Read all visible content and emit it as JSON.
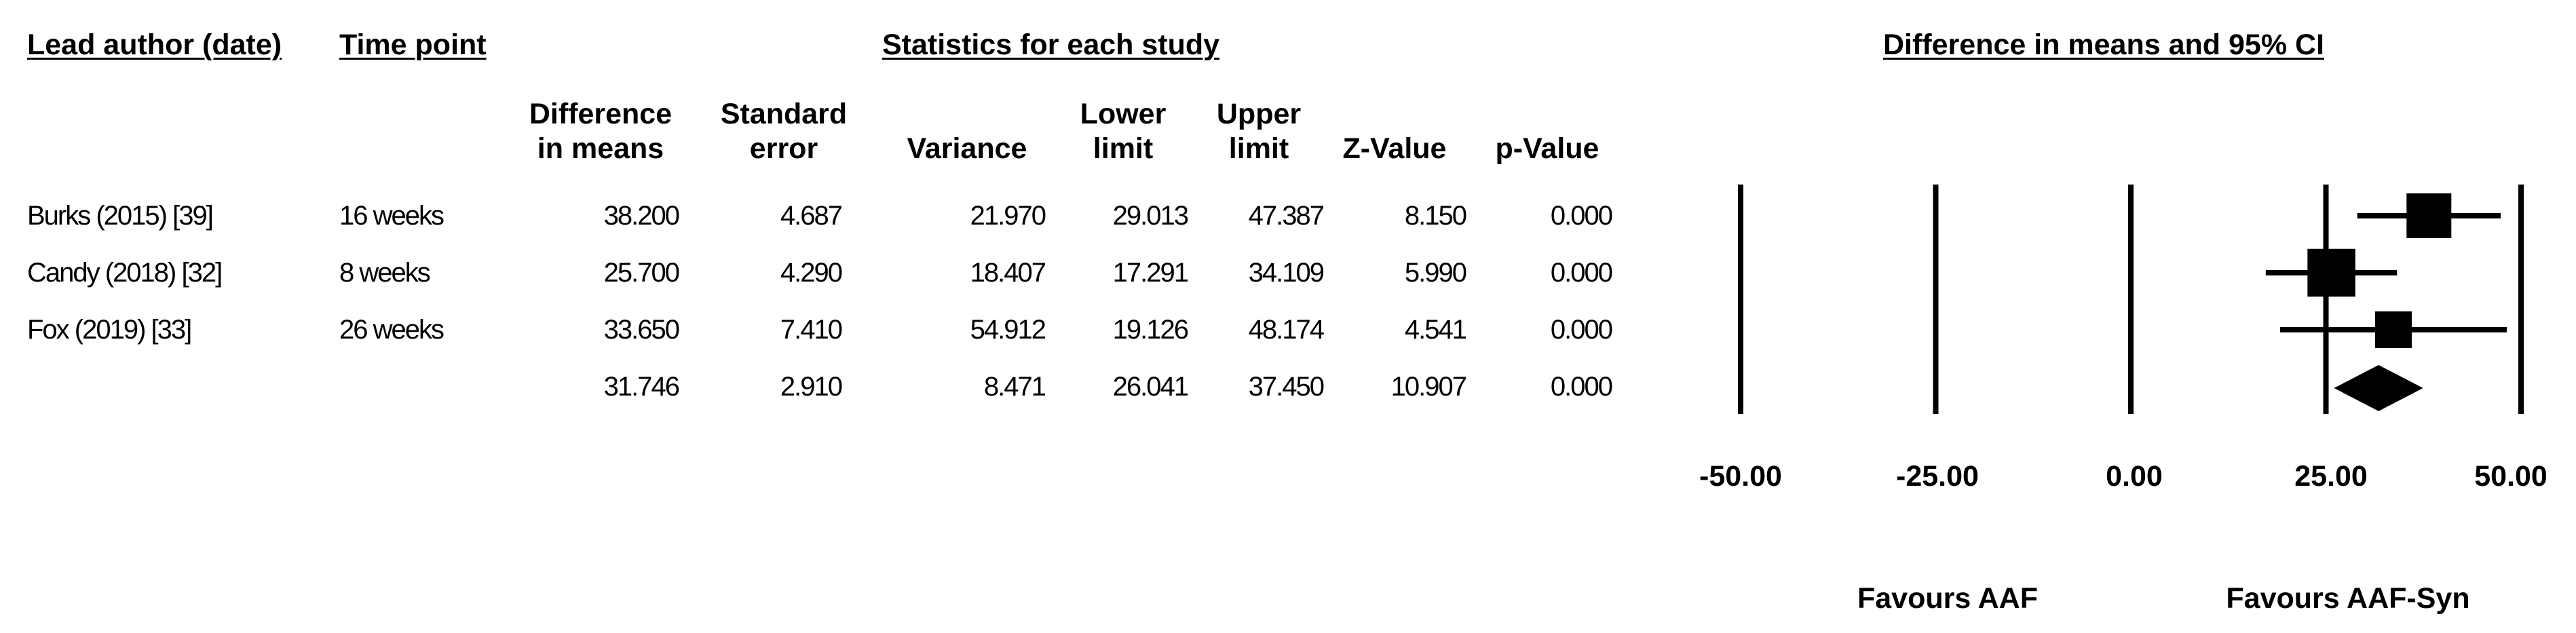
{
  "headers": {
    "author": "Lead author (date)",
    "time": "Time point",
    "stats": "Statistics for each study",
    "forest": "Difference in means and 95% CI"
  },
  "columns": [
    {
      "key": "diff",
      "line1": "Difference",
      "line2": "in means"
    },
    {
      "key": "se",
      "line1": "Standard",
      "line2": "error"
    },
    {
      "key": "var",
      "line1": "",
      "line2": "Variance"
    },
    {
      "key": "lower",
      "line1": "Lower",
      "line2": "limit"
    },
    {
      "key": "upper",
      "line1": "Upper",
      "line2": "limit"
    },
    {
      "key": "z",
      "line1": "",
      "line2": "Z-Value"
    },
    {
      "key": "p",
      "line1": "",
      "line2": "p-Value"
    }
  ],
  "rows": [
    {
      "author": "Burks (2015) [39]",
      "time": "16 weeks",
      "diff": "38.200",
      "se": "4.687",
      "var": "21.970",
      "lower": "29.013",
      "upper": "47.387",
      "z": "8.150",
      "p": "0.000"
    },
    {
      "author": "Candy (2018) [32]",
      "time": "8 weeks",
      "diff": "25.700",
      "se": "4.290",
      "var": "18.407",
      "lower": "17.291",
      "upper": "34.109",
      "z": "5.990",
      "p": "0.000"
    },
    {
      "author": "Fox (2019) [33]",
      "time": "26 weeks",
      "diff": "33.650",
      "se": "7.410",
      "var": "54.912",
      "lower": "19.126",
      "upper": "48.174",
      "z": "4.541",
      "p": "0.000"
    },
    {
      "author": "",
      "time": "",
      "diff": "31.746",
      "se": "2.910",
      "var": "8.471",
      "lower": "26.041",
      "upper": "37.450",
      "z": "10.907",
      "p": "0.000"
    }
  ],
  "axis": {
    "ticks": [
      "-50.00",
      "-25.00",
      "0.00",
      "25.00",
      "50.00"
    ],
    "favour_left": "Favours AAF",
    "favour_right": "Favours AAF-Syn"
  },
  "chart_data": {
    "type": "forest",
    "xlim": [
      -50,
      50
    ],
    "xticks": [
      -50,
      -25,
      0,
      25,
      50
    ],
    "studies": [
      {
        "label": "Burks (2015) [39]",
        "estimate": 38.2,
        "lower": 29.013,
        "upper": 47.387,
        "marker": "square",
        "weight": 1.0
      },
      {
        "label": "Candy (2018) [32]",
        "estimate": 25.7,
        "lower": 17.291,
        "upper": 34.109,
        "marker": "square",
        "weight": 1.15
      },
      {
        "label": "Fox (2019) [33]",
        "estimate": 33.65,
        "lower": 19.126,
        "upper": 48.174,
        "marker": "square",
        "weight": 0.6
      }
    ],
    "summary": {
      "estimate": 31.746,
      "lower": 26.041,
      "upper": 37.45,
      "marker": "diamond"
    }
  }
}
